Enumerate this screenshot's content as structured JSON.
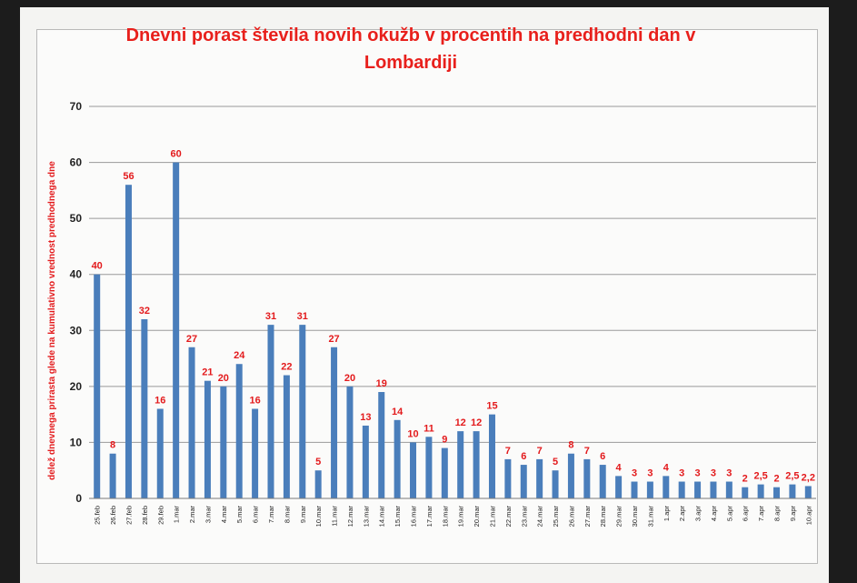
{
  "chart_data": {
    "type": "bar",
    "title": "Dnevni porast števila novih okužb v procentih na predhodni dan v Lombardiji",
    "title_lines": [
      "Dnevni porast števila novih okužb v procentih na predhodni dan v",
      "Lombardiji"
    ],
    "xlabel": "",
    "ylabel": "delež dnevnega prirasta glede na kumulativno vrednost predhodnega dne",
    "ylim": [
      0,
      70
    ],
    "yticks": [
      "0",
      "10",
      "20",
      "30",
      "40",
      "50",
      "60",
      "70"
    ],
    "grid": true,
    "bar_color": "#4a7ebb",
    "label_color": "#e31a1c",
    "categories": [
      "25.feb",
      "26.feb",
      "27.feb",
      "28.feb",
      "29.feb",
      "1.mar",
      "2.mar",
      "3.mar",
      "4.mar",
      "5.mar",
      "6.mar",
      "7.mar",
      "8.mar",
      "9.mar",
      "10.mar",
      "11.mar",
      "12.mar",
      "13.mar",
      "14.mar",
      "15.mar",
      "16.mar",
      "17.mar",
      "18.mar",
      "19.mar",
      "20.mar",
      "21.mar",
      "22.mar",
      "23.mar",
      "24.mar",
      "25.mar",
      "26.mar",
      "27.mar",
      "28.mar",
      "29.mar",
      "30.mar",
      "31.mar",
      "1.apr",
      "2.apr",
      "3.apr",
      "4.apr",
      "5.apr",
      "6.apr",
      "7.apr",
      "8.apr",
      "9.apr",
      "10.apr"
    ],
    "values": [
      40,
      8,
      56,
      32,
      16,
      60,
      27,
      21,
      20,
      24,
      16,
      31,
      22,
      31,
      5,
      27,
      20,
      13,
      19,
      14,
      10,
      11,
      9,
      12,
      12,
      15,
      7,
      6,
      7,
      5,
      8,
      7,
      6,
      4,
      3,
      3,
      4,
      3,
      3,
      3,
      3,
      2,
      2.5,
      2,
      2.5,
      2.2
    ],
    "data_labels": [
      "40",
      "8",
      "56",
      "32",
      "16",
      "60",
      "27",
      "21",
      "20",
      "24",
      "16",
      "31",
      "22",
      "31",
      "5",
      "27",
      "20",
      "13",
      "19",
      "14",
      "10",
      "11",
      "9",
      "12",
      "12",
      "15",
      "7",
      "6",
      "7",
      "5",
      "8",
      "7",
      "6",
      "4",
      "3",
      "3",
      "4",
      "3",
      "3",
      "3",
      "3",
      "2",
      "2,5",
      "2",
      "2,5",
      "2,2"
    ]
  }
}
